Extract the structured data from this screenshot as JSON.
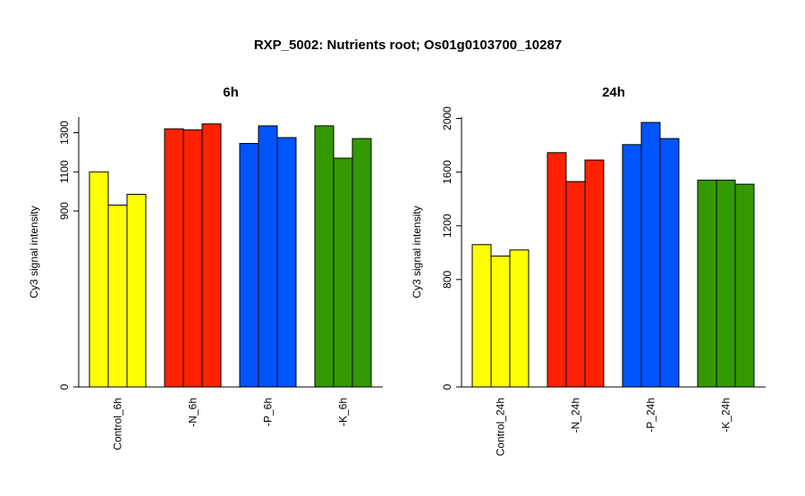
{
  "title": "RXP_5002: Nutrients root; Os01g0103700_10287",
  "colors": {
    "control": "#ffff00",
    "N": "#ff2200",
    "P": "#0055ff",
    "K": "#339900",
    "axis": "#000000"
  },
  "chart_data": [
    {
      "type": "bar",
      "title": "6h",
      "ylabel": "Cy3 signal intensity",
      "ylim": [
        0,
        1380
      ],
      "yticks": [
        0,
        900,
        1100,
        1300
      ],
      "categories": [
        "Control_6h",
        "-N_6h",
        "-P_6h",
        "-K_6h"
      ],
      "group_colors": [
        "control",
        "N",
        "P",
        "K"
      ],
      "values": [
        [
          1100,
          930,
          985
        ],
        [
          1320,
          1315,
          1345
        ],
        [
          1245,
          1335,
          1275
        ],
        [
          1335,
          1170,
          1270
        ]
      ]
    },
    {
      "type": "bar",
      "title": "24h",
      "ylabel": "Cy3 signal intensity",
      "ylim": [
        0,
        2010
      ],
      "yticks": [
        0,
        800,
        1200,
        1600,
        2000
      ],
      "categories": [
        "Control_24h",
        "-N_24h",
        "-P_24h",
        "-K_24h"
      ],
      "group_colors": [
        "control",
        "N",
        "P",
        "K"
      ],
      "values": [
        [
          1060,
          975,
          1020
        ],
        [
          1745,
          1530,
          1690
        ],
        [
          1805,
          1970,
          1850
        ],
        [
          1540,
          1540,
          1510
        ]
      ]
    }
  ]
}
